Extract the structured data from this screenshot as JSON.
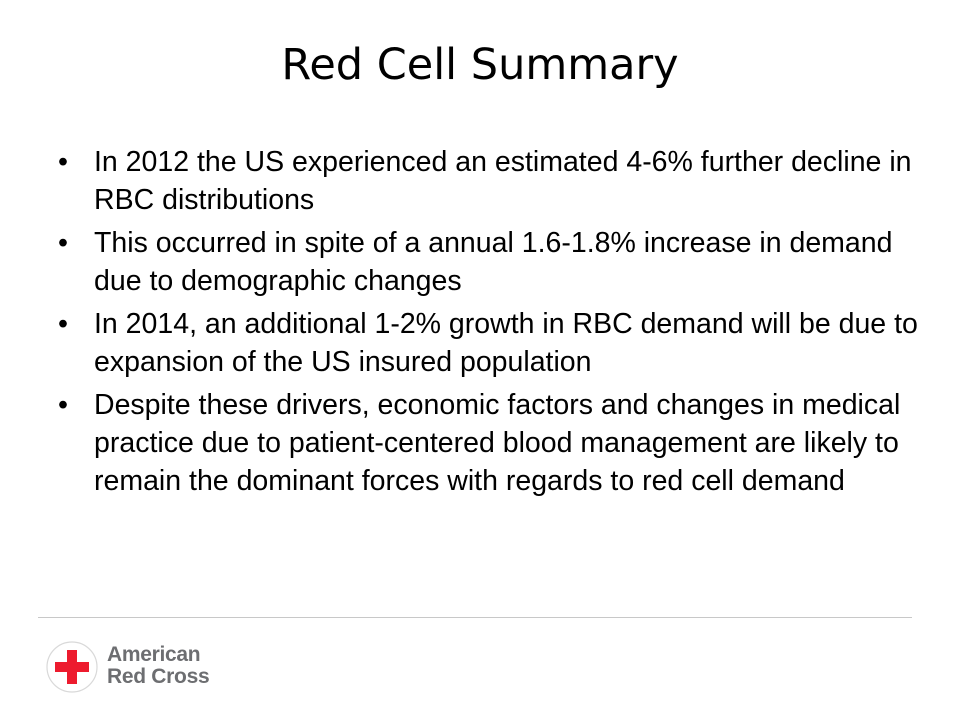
{
  "slide": {
    "title": "Red Cell Summary",
    "bullet_marker": "•",
    "bullets": [
      "In 2012 the US experienced an estimated 4-6% further decline in RBC distributions",
      "This occurred in spite of a annual 1.6-1.8% increase in demand due to demographic changes",
      "In 2014, an additional 1-2% growth in RBC demand will be due to expansion of the US insured population",
      "Despite these drivers, economic factors and changes in medical practice due to patient-centered blood management are likely to remain the dominant forces with regards to red cell demand"
    ]
  },
  "footer": {
    "logo": {
      "icon": "red-cross-icon",
      "line1": "American",
      "line2": "Red Cross",
      "cross_color": "#ed1b2e",
      "text_color": "#6d6e71"
    },
    "divider_color": "#c8c8c8"
  }
}
